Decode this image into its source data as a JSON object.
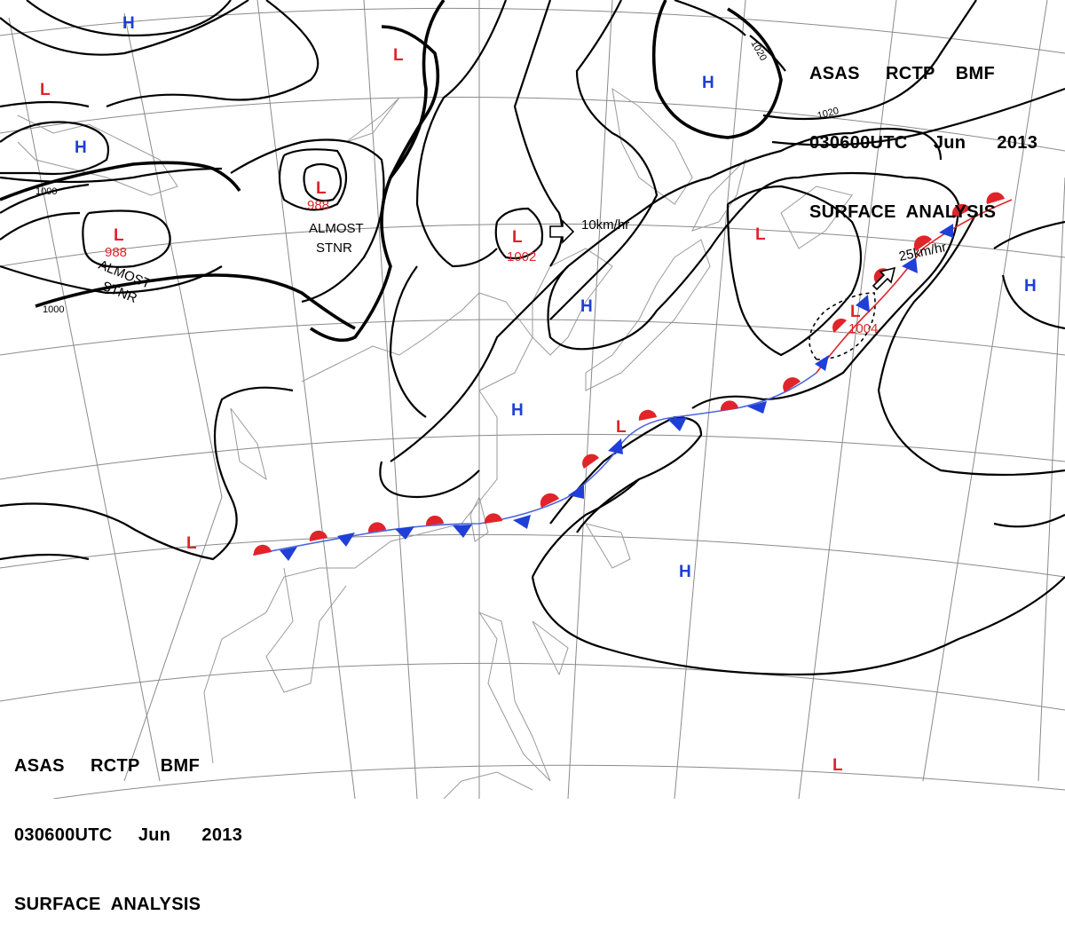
{
  "header": {
    "line1": "ASAS     RCTP    BMF",
    "line2": "030600UTC     Jun      2013",
    "line3": "SURFACE  ANALYSIS"
  },
  "colors": {
    "low": "#e0242a",
    "high": "#1f3fd8",
    "front_warm": "#e0242a",
    "front_cold": "#1f3fd8"
  },
  "pressure_centers": [
    {
      "type": "L",
      "value": "",
      "note": ""
    },
    {
      "type": "H",
      "value": "",
      "note": ""
    },
    {
      "type": "H",
      "value": "",
      "note": ""
    },
    {
      "type": "L",
      "value": "988",
      "note": "ALMOST STNR"
    },
    {
      "type": "L",
      "value": "988",
      "note": "ALMOST STNR"
    },
    {
      "type": "L",
      "value": "",
      "note": ""
    },
    {
      "type": "L",
      "value": "1002",
      "note": ""
    },
    {
      "type": "H",
      "value": "",
      "note": ""
    },
    {
      "type": "H",
      "value": "",
      "note": ""
    },
    {
      "type": "H",
      "value": "",
      "note": ""
    },
    {
      "type": "L",
      "value": "",
      "note": ""
    },
    {
      "type": "L",
      "value": "1004",
      "note": ""
    },
    {
      "type": "H",
      "value": "",
      "note": ""
    },
    {
      "type": "L",
      "value": "",
      "note": ""
    },
    {
      "type": "L",
      "value": "",
      "note": ""
    },
    {
      "type": "H",
      "value": "",
      "note": ""
    },
    {
      "type": "L",
      "value": "",
      "note": ""
    }
  ],
  "isobar_labels": [
    "1000",
    "1000",
    "1020",
    "1020"
  ],
  "motion_labels": [
    "10km/hr",
    "25km/hr"
  ],
  "notes": [
    "ALMOST",
    "STNR",
    "ALMOST",
    "STNR"
  ]
}
